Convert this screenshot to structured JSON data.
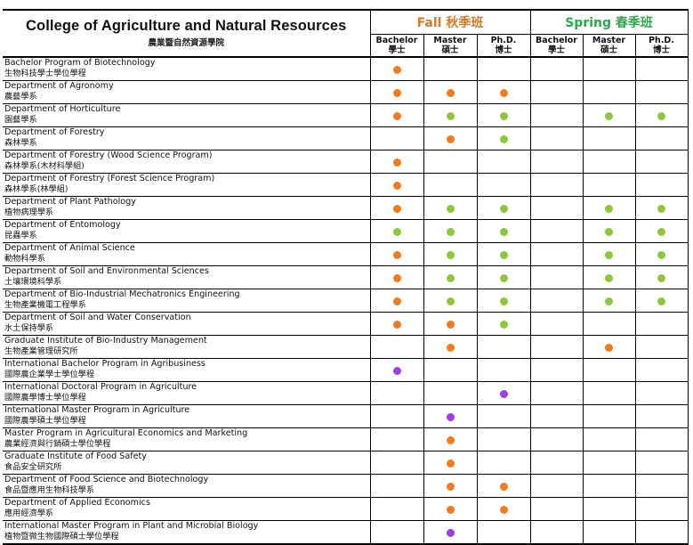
{
  "header": {
    "title": "College of Agriculture and Natural Resources",
    "subtitle": "農業暨自然資源學院",
    "fall_label": "Fall 秋季班",
    "spring_label": "Spring 春季班",
    "degrees": [
      {
        "en": "Bachelor",
        "zh": "學士"
      },
      {
        "en": "Master",
        "zh": "碩士"
      },
      {
        "en": "Ph.D.",
        "zh": "博士"
      }
    ]
  },
  "colors": {
    "orange": "#f07c22",
    "green": "#8dc63f",
    "purple": "#9b3fe0"
  },
  "programs": [
    {
      "en": "Bachelor Program of Biotechnology",
      "zh": "生物科技學士學位學程",
      "fall": [
        "orange",
        "",
        ""
      ],
      "spring": [
        "",
        "",
        ""
      ]
    },
    {
      "en": "Department of Agronomy",
      "zh": "農藝學系",
      "fall": [
        "orange",
        "orange",
        "orange"
      ],
      "spring": [
        "",
        "",
        ""
      ]
    },
    {
      "en": "Department of Horticulture",
      "zh": "園藝學系",
      "fall": [
        "orange",
        "green",
        "green"
      ],
      "spring": [
        "",
        "green",
        "green"
      ]
    },
    {
      "en": "Department of Forestry",
      "zh": "森林學系",
      "fall": [
        "",
        "orange",
        "green"
      ],
      "spring": [
        "",
        "",
        ""
      ]
    },
    {
      "en": "Department of Forestry (Wood Science Program)",
      "zh": "森林學系(木材科學組)",
      "fall": [
        "orange",
        "",
        ""
      ],
      "spring": [
        "",
        "",
        ""
      ]
    },
    {
      "en": "Department of Forestry (Forest Science Program)",
      "zh": "森林學系(林學組)",
      "fall": [
        "orange",
        "",
        ""
      ],
      "spring": [
        "",
        "",
        ""
      ]
    },
    {
      "en": "Department of Plant Pathology",
      "zh": "植物病理學系",
      "fall": [
        "orange",
        "green",
        "green"
      ],
      "spring": [
        "",
        "green",
        "green"
      ]
    },
    {
      "en": "Department of Entomology",
      "zh": "昆蟲學系",
      "fall": [
        "green",
        "green",
        "green"
      ],
      "spring": [
        "",
        "green",
        "green"
      ]
    },
    {
      "en": "Department of Animal Science",
      "zh": "動物科學系",
      "fall": [
        "orange",
        "green",
        "green"
      ],
      "spring": [
        "",
        "green",
        "green"
      ]
    },
    {
      "en": "Department of Soil and Environmental Sciences",
      "zh": "土壤環境科學系",
      "fall": [
        "orange",
        "green",
        "green"
      ],
      "spring": [
        "",
        "green",
        "green"
      ]
    },
    {
      "en": "Department of Bio-Industrial Mechatronics Engineering",
      "zh": "生物產業機電工程學系",
      "fall": [
        "orange",
        "green",
        "green"
      ],
      "spring": [
        "",
        "green",
        "green"
      ]
    },
    {
      "en": "Department of Soil and Water Conservation",
      "zh": "水土保持學系",
      "fall": [
        "orange",
        "orange",
        "green"
      ],
      "spring": [
        "",
        "",
        ""
      ]
    },
    {
      "en": "Graduate Institute of Bio-Industry Management",
      "zh": "生物產業管理研究所",
      "fall": [
        "",
        "orange",
        ""
      ],
      "spring": [
        "",
        "orange",
        ""
      ]
    },
    {
      "en": "International Bachelor Program in Agribusiness",
      "zh": "國際農企業學士學位學程",
      "fall": [
        "purple",
        "",
        ""
      ],
      "spring": [
        "",
        "",
        ""
      ]
    },
    {
      "en": "International Doctoral Program in Agriculture",
      "zh": "國際農學博士學位學程",
      "fall": [
        "",
        "",
        "purple"
      ],
      "spring": [
        "",
        "",
        ""
      ]
    },
    {
      "en": "International Master Program in Agriculture",
      "zh": "國際農學碩士學位學程",
      "fall": [
        "",
        "purple",
        ""
      ],
      "spring": [
        "",
        "",
        ""
      ]
    },
    {
      "en": "Master Program in Agricultural Economics and Marketing",
      "zh": "農業經濟與行銷碩士學位學程",
      "fall": [
        "",
        "orange",
        ""
      ],
      "spring": [
        "",
        "",
        ""
      ]
    },
    {
      "en": "Graduate Institute of Food Safety",
      "zh": "食品安全研究所",
      "fall": [
        "",
        "orange",
        ""
      ],
      "spring": [
        "",
        "",
        ""
      ]
    },
    {
      "en": "Department of Food Science and Biotechnology",
      "zh": "食品暨應用生物科技學系",
      "fall": [
        "",
        "orange",
        "orange"
      ],
      "spring": [
        "",
        "",
        ""
      ]
    },
    {
      "en": "Department of Applied Economics",
      "zh": "應用經濟學系",
      "fall": [
        "",
        "orange",
        "orange"
      ],
      "spring": [
        "",
        "",
        ""
      ]
    },
    {
      "en": "International Master Program in Plant and Microbial Biology",
      "zh": "植物暨微生物國際碩士學位學程",
      "fall": [
        "",
        "purple",
        ""
      ],
      "spring": [
        "",
        "",
        ""
      ]
    }
  ]
}
